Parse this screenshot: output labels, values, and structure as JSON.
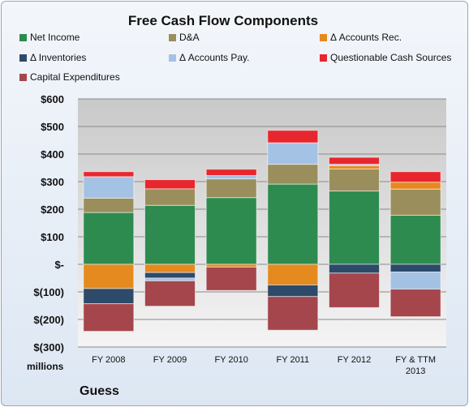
{
  "chart_data": {
    "type": "bar",
    "stacked": true,
    "title": "Free Cash Flow Components",
    "units_label": "millions",
    "company": "Guess",
    "categories": [
      "FY 2008",
      "FY 2009",
      "FY 2010",
      "FY 2011",
      "FY 2012",
      "FY & TTM 2013"
    ],
    "y_tick_labels": [
      "$600",
      "$500",
      "$400",
      "$300",
      "$200",
      "$100",
      "$-",
      "$(100)",
      "$(200)",
      "$(300)"
    ],
    "ylim": [
      -300,
      600
    ],
    "grid": true,
    "legend_position": "top",
    "series": [
      {
        "name": "Net Income",
        "color": "#2e8b4f",
        "values": [
          188,
          214,
          242,
          291,
          266,
          178
        ]
      },
      {
        "name": "D&A",
        "color": "#9a8f5c",
        "values": [
          52,
          60,
          68,
          72,
          80,
          95
        ]
      },
      {
        "name": "Δ Accounts Rec.",
        "color": "#e58a1f",
        "values": [
          -88,
          -30,
          -10,
          -75,
          12,
          25
        ]
      },
      {
        "name": "Δ Inventories",
        "color": "#2e4a6b",
        "values": [
          -55,
          -20,
          0,
          -42,
          -32,
          -28
        ]
      },
      {
        "name": "Δ Accounts Pay.",
        "color": "#a4c2e4",
        "values": [
          78,
          -10,
          12,
          78,
          5,
          -62
        ]
      },
      {
        "name": "Questionable Cash Sources",
        "color": "#e8262e",
        "values": [
          18,
          33,
          23,
          45,
          25,
          38
        ]
      },
      {
        "name": "Capital Expenditures",
        "color": "#a4464c",
        "values": [
          -100,
          -92,
          -85,
          -122,
          -125,
          -100
        ]
      }
    ]
  }
}
